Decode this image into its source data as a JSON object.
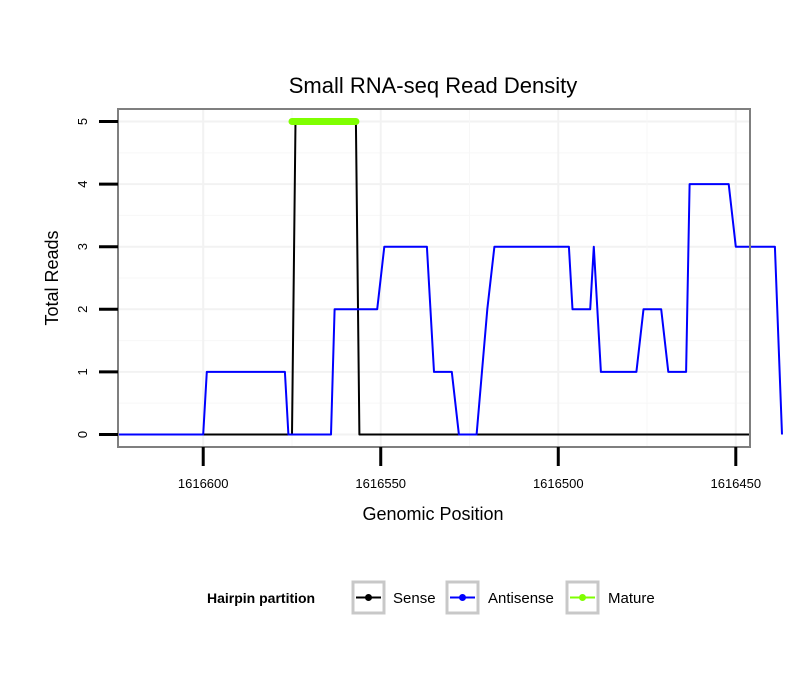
{
  "chart_data": {
    "type": "line",
    "title": "Small RNA-seq Read Density",
    "xlabel": "Genomic Position",
    "ylabel": "Total Reads",
    "x_reversed": true,
    "xlim": [
      1616624,
      1616446
    ],
    "ylim": [
      -0.2,
      5.2
    ],
    "x_ticks": [
      1616600,
      1616550,
      1616500,
      1616450
    ],
    "x_tick_labels": [
      "1616600",
      "1616550",
      "1616500",
      "1616450"
    ],
    "y_ticks": [
      0,
      1,
      2,
      3,
      4,
      5
    ],
    "y_tick_labels": [
      "0",
      "1",
      "2",
      "3",
      "4",
      "5"
    ],
    "grid": true,
    "legend": {
      "title": "Hairpin partition",
      "position": "bottom",
      "entries": [
        "Sense",
        "Antisense",
        "Mature"
      ]
    },
    "series": [
      {
        "name": "Sense",
        "color": "#000000",
        "x": [
          1616624,
          1616575,
          1616574,
          1616557,
          1616556,
          1616446
        ],
        "y": [
          0,
          0,
          5,
          5,
          0,
          0
        ]
      },
      {
        "name": "Antisense",
        "color": "#0000FF",
        "x": [
          1616624,
          1616600,
          1616599,
          1616577,
          1616576,
          1616564,
          1616563,
          1616551,
          1616549,
          1616537,
          1616535,
          1616530,
          1616528,
          1616523,
          1616520,
          1616518,
          1616515,
          1616497,
          1616496,
          1616491,
          1616490,
          1616488,
          1616478,
          1616476,
          1616471,
          1616469,
          1616464,
          1616463,
          1616452,
          1616450,
          1616439,
          1616437
        ],
        "y": [
          0,
          0,
          1,
          1,
          0,
          0,
          2,
          2,
          3,
          3,
          1,
          1,
          0,
          0,
          2,
          3,
          3,
          3,
          2,
          2,
          3,
          1,
          1,
          2,
          2,
          1,
          1,
          4,
          4,
          3,
          3,
          0
        ]
      },
      {
        "name": "Mature",
        "color": "#7FFF00",
        "x": [
          1616575,
          1616557
        ],
        "y": [
          5,
          5
        ]
      }
    ]
  }
}
